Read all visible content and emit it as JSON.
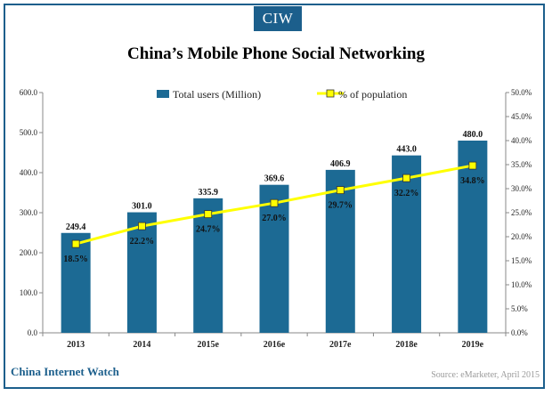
{
  "logo": "CIW",
  "brand": "China Internet Watch",
  "source": "Source: eMarketer, April 2015",
  "colors": {
    "bar": "#1c6a94",
    "line": "#ffff00",
    "marker": "#ffff00",
    "frame": "#1c5f8c",
    "brand": "#1c5f8c"
  },
  "chart_data": {
    "type": "bar",
    "title": "China’s Mobile Phone Social Networking",
    "categories": [
      "2013",
      "2014",
      "2015e",
      "2016e",
      "2017e",
      "2018e",
      "2019e"
    ],
    "series": [
      {
        "name": "Total users (Million)",
        "type": "bar",
        "axis": "left",
        "values": [
          249.4,
          301.0,
          335.9,
          369.6,
          406.9,
          443.0,
          480.0
        ],
        "labels": [
          "249.4",
          "301.0",
          "335.9",
          "369.6",
          "406.9",
          "443.0",
          "480.0"
        ]
      },
      {
        "name": "% of population",
        "type": "line",
        "axis": "right",
        "values": [
          18.5,
          22.2,
          24.7,
          27.0,
          29.7,
          32.2,
          34.8
        ],
        "labels": [
          "18.5%",
          "22.2%",
          "24.7%",
          "27.0%",
          "29.7%",
          "32.2%",
          "34.8%"
        ]
      }
    ],
    "y_left": {
      "ylim": [
        0,
        600
      ],
      "ticks": [
        "0.0",
        "100.0",
        "200.0",
        "300.0",
        "400.0",
        "500.0",
        "600.0"
      ]
    },
    "y_right": {
      "ylim": [
        0,
        50
      ],
      "ticks": [
        "0.0%",
        "5.0%",
        "10.0%",
        "15.0%",
        "20.0%",
        "25.0%",
        "30.0%",
        "35.0%",
        "40.0%",
        "45.0%",
        "50.0%"
      ]
    },
    "grid": false,
    "legend": "top-center"
  }
}
